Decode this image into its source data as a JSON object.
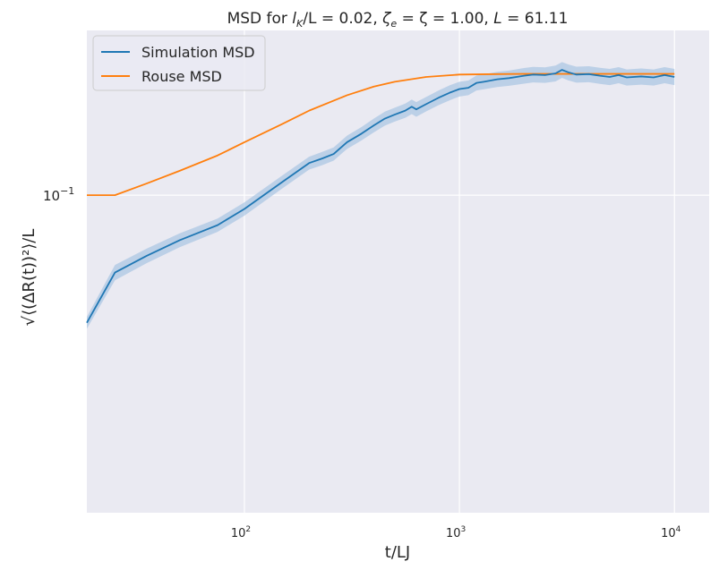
{
  "chart_data": {
    "type": "line",
    "title": "MSD for l_K/L = 0.02, ζ_e = ζ = 1.00, L = 61.11",
    "title_parts": {
      "prefix": "MSD for ",
      "lk": "l",
      "lk_sub": "K",
      "lk_rest": "/L = 0.02, ",
      "zeta": "ζ",
      "zeta_sub": "e",
      "zeta_rest": " = ζ = 1.00, ",
      "L": "L",
      "L_rest": " = 61.11"
    },
    "xlabel": "t/LJ",
    "ylabel": "√⟨(ΔR(t))²⟩/L",
    "xscale": "log",
    "yscale": "log",
    "xlim": [
      18.5,
      14500
    ],
    "ylim": [
      0.039,
      0.163
    ],
    "grid": true,
    "legend_position": "top-left",
    "x_ticks": [
      {
        "value": 100,
        "base": "10",
        "exp": "2"
      },
      {
        "value": 1000,
        "base": "10",
        "exp": "3"
      },
      {
        "value": 10000,
        "base": "10",
        "exp": "4"
      }
    ],
    "y_ticks": [
      {
        "value": 0.1,
        "base": "10",
        "exp": "−1"
      }
    ],
    "series": [
      {
        "name": "Simulation MSD",
        "color": "#1f77b4",
        "band_color": "#a8c5e3",
        "x": [
          18.5,
          25,
          35,
          50,
          75,
          100,
          150,
          200,
          230,
          260,
          300,
          350,
          400,
          450,
          500,
          560,
          600,
          630,
          700,
          800,
          900,
          1000,
          1100,
          1200,
          1300,
          1500,
          1700,
          2000,
          2200,
          2500,
          2800,
          3000,
          3200,
          3500,
          4000,
          4500,
          5000,
          5500,
          6000,
          7000,
          8000,
          9000,
          10000
        ],
        "y": [
          0.0685,
          0.0795,
          0.0835,
          0.0875,
          0.0915,
          0.096,
          0.104,
          0.11,
          0.1115,
          0.113,
          0.117,
          0.12,
          0.123,
          0.1255,
          0.127,
          0.1285,
          0.13,
          0.129,
          0.131,
          0.1335,
          0.1355,
          0.137,
          0.1375,
          0.1395,
          0.14,
          0.141,
          0.1415,
          0.1425,
          0.143,
          0.1428,
          0.1435,
          0.145,
          0.144,
          0.143,
          0.1432,
          0.1425,
          0.142,
          0.1428,
          0.1418,
          0.1422,
          0.1418,
          0.1428,
          0.142
        ],
        "band_halfwidth": [
          0.0012,
          0.0018,
          0.0018,
          0.0018,
          0.0018,
          0.0019,
          0.002,
          0.0021,
          0.0022,
          0.0022,
          0.0023,
          0.0024,
          0.0025,
          0.0026,
          0.0026,
          0.0027,
          0.0028,
          0.0028,
          0.0028,
          0.0029,
          0.003,
          0.003,
          0.003,
          0.0031,
          0.0031,
          0.0032,
          0.0032,
          0.0033,
          0.0033,
          0.0033,
          0.0034,
          0.0034,
          0.0034,
          0.0034,
          0.0034,
          0.0034,
          0.0034,
          0.0034,
          0.0034,
          0.0034,
          0.0034,
          0.0034,
          0.0034
        ]
      },
      {
        "name": "Rouse MSD",
        "color": "#ff7f0e",
        "x": [
          18.5,
          25,
          35,
          50,
          75,
          100,
          150,
          200,
          300,
          400,
          500,
          700,
          1000,
          1500,
          2000,
          3000,
          5000,
          10000
        ],
        "y": [
          0.1,
          0.1,
          0.1035,
          0.1075,
          0.1125,
          0.117,
          0.1235,
          0.1285,
          0.1345,
          0.138,
          0.14,
          0.142,
          0.143,
          0.1432,
          0.1433,
          0.1433,
          0.1433,
          0.1433
        ]
      }
    ]
  }
}
